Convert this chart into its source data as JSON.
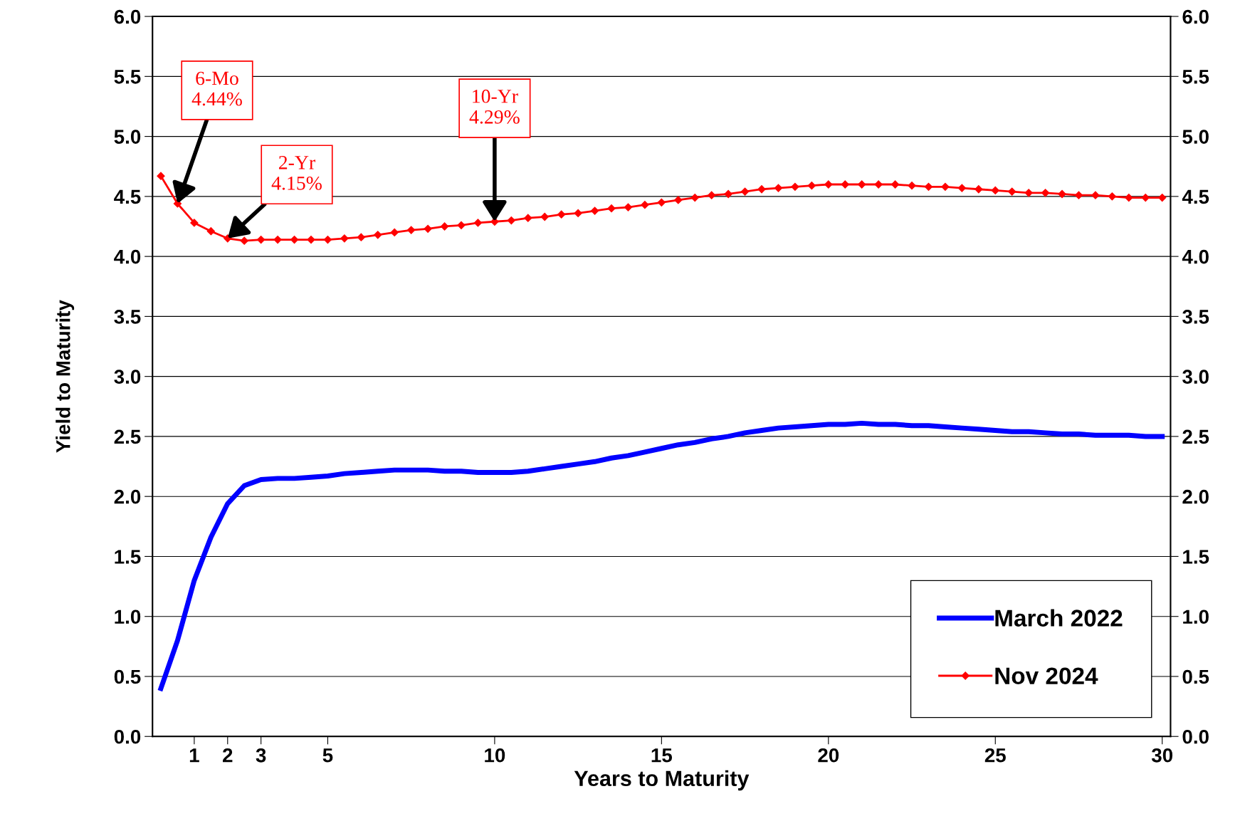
{
  "chart_data": {
    "type": "line",
    "xlabel": "Years to Maturity",
    "ylabel": "Yield to Maturity",
    "x": [
      0,
      0.5,
      1,
      1.5,
      2,
      2.5,
      3,
      3.5,
      4,
      4.5,
      5,
      5.5,
      6,
      6.5,
      7,
      7.5,
      8,
      8.5,
      9,
      9.5,
      10,
      10.5,
      11,
      11.5,
      12,
      12.5,
      13,
      13.5,
      14,
      14.5,
      15,
      15.5,
      16,
      16.5,
      17,
      17.5,
      18,
      18.5,
      19,
      19.5,
      20,
      20.5,
      21,
      21.5,
      22,
      22.5,
      23,
      23.5,
      24,
      24.5,
      25,
      25.5,
      26,
      26.5,
      27,
      27.5,
      28,
      28.5,
      29,
      29.5,
      30
    ],
    "series": [
      {
        "name": "March 2022",
        "color": "#0000ff",
        "marker": "none",
        "values": [
          0.4,
          0.8,
          1.3,
          1.66,
          1.94,
          2.09,
          2.14,
          2.15,
          2.15,
          2.16,
          2.17,
          2.19,
          2.2,
          2.21,
          2.22,
          2.22,
          2.22,
          2.21,
          2.21,
          2.2,
          2.2,
          2.2,
          2.21,
          2.23,
          2.25,
          2.27,
          2.29,
          2.32,
          2.34,
          2.37,
          2.4,
          2.43,
          2.45,
          2.48,
          2.5,
          2.53,
          2.55,
          2.57,
          2.58,
          2.59,
          2.6,
          2.6,
          2.61,
          2.6,
          2.6,
          2.59,
          2.59,
          2.58,
          2.57,
          2.56,
          2.55,
          2.54,
          2.54,
          2.53,
          2.52,
          2.52,
          2.51,
          2.51,
          2.51,
          2.5,
          2.5
        ]
      },
      {
        "name": "Nov 2024",
        "color": "#ff0000",
        "marker": "diamond",
        "values": [
          4.67,
          4.44,
          4.28,
          4.21,
          4.15,
          4.13,
          4.14,
          4.14,
          4.14,
          4.14,
          4.14,
          4.15,
          4.16,
          4.18,
          4.2,
          4.22,
          4.23,
          4.25,
          4.26,
          4.28,
          4.29,
          4.3,
          4.32,
          4.33,
          4.35,
          4.36,
          4.38,
          4.4,
          4.41,
          4.43,
          4.45,
          4.47,
          4.49,
          4.51,
          4.52,
          4.54,
          4.56,
          4.57,
          4.58,
          4.59,
          4.6,
          4.6,
          4.6,
          4.6,
          4.6,
          4.59,
          4.58,
          4.58,
          4.57,
          4.56,
          4.55,
          4.54,
          4.53,
          4.53,
          4.52,
          4.51,
          4.51,
          4.5,
          4.49,
          4.49,
          4.49
        ]
      }
    ],
    "xlim": [
      -0.25,
      30.25
    ],
    "xticks": [
      1,
      2,
      3,
      5,
      10,
      15,
      20,
      25,
      30
    ],
    "ylim": [
      0,
      6
    ],
    "yticks": [
      {
        "value": 0,
        "label": "0.0"
      },
      {
        "value": 0.5,
        "label": "0.5"
      },
      {
        "value": 1,
        "label": "1.0"
      },
      {
        "value": 1.5,
        "label": "1.5"
      },
      {
        "value": 2,
        "label": "2.0"
      },
      {
        "value": 2.5,
        "label": "2.5"
      },
      {
        "value": 3,
        "label": "3.0"
      },
      {
        "value": 3.5,
        "label": "3.5"
      },
      {
        "value": 4,
        "label": "4.0"
      },
      {
        "value": 4.5,
        "label": "4.5"
      },
      {
        "value": 5,
        "label": "5.0"
      },
      {
        "value": 5.5,
        "label": "5.5"
      },
      {
        "value": 6,
        "label": "6.0"
      }
    ],
    "y2lim": [
      0,
      6
    ],
    "y2ticks": [
      {
        "value": 0,
        "label": "0.0"
      },
      {
        "value": 0.5,
        "label": "0.5"
      },
      {
        "value": 1,
        "label": "1.0"
      },
      {
        "value": 1.5,
        "label": "1.5"
      },
      {
        "value": 2,
        "label": "2.0"
      },
      {
        "value": 2.5,
        "label": "2.5"
      },
      {
        "value": 3,
        "label": "3.0"
      },
      {
        "value": 3.5,
        "label": "3.5"
      },
      {
        "value": 4,
        "label": "4.0"
      },
      {
        "value": 4.5,
        "label": "4.5"
      },
      {
        "value": 5,
        "label": "5.0"
      },
      {
        "value": 5.5,
        "label": "5.5"
      },
      {
        "value": 6,
        "label": "6.0"
      }
    ],
    "grid": "y",
    "legend": "bottom right",
    "annotations": [
      {
        "text": "6-Mo\n4.44%",
        "x": 0.5,
        "y": 4.44
      },
      {
        "text": "2-Yr\n4.15%",
        "x": 2,
        "y": 4.15
      },
      {
        "text": "10-Yr\n4.29%",
        "x": 10,
        "y": 4.29
      }
    ]
  }
}
